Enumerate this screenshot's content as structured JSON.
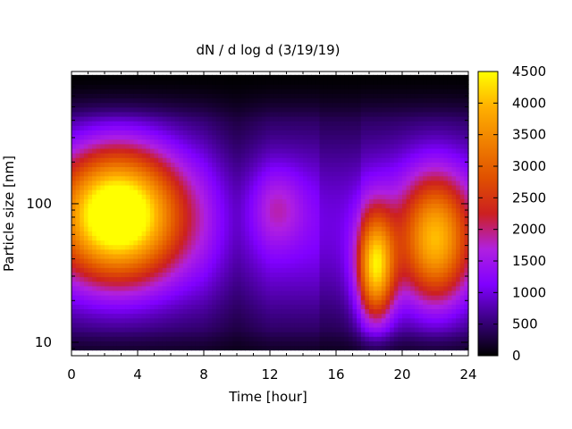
{
  "chart_data": {
    "type": "heatmap",
    "title": "dN / d log d (3/19/19)",
    "xlabel": "Time [hour]",
    "ylabel": "Particle size [nm]",
    "x_range": [
      0,
      24
    ],
    "x_ticks": [
      0,
      4,
      8,
      12,
      16,
      20,
      24
    ],
    "x_tick_labels": [
      "0",
      "4",
      "8",
      "12",
      "16",
      "20",
      "24"
    ],
    "y_scale": "log",
    "y_range": [
      8,
      900
    ],
    "y_ticks": [
      10,
      100
    ],
    "y_tick_labels": [
      "10",
      "100"
    ],
    "colorbar": {
      "range": [
        0,
        4500
      ],
      "ticks": [
        0,
        500,
        1000,
        1500,
        2000,
        2500,
        3000,
        3500,
        4000,
        4500
      ],
      "tick_labels": [
        "0",
        "500",
        "1000",
        "1500",
        "2000",
        "2500",
        "3000",
        "3500",
        "4000",
        "4500"
      ],
      "colormap": [
        "#000000",
        "#3a0080",
        "#8000ff",
        "#b020e0",
        "#cc2020",
        "#e05000",
        "#f08000",
        "#ffb000",
        "#ffff00"
      ]
    },
    "data_extent": {
      "d_min_nm": 8.8,
      "d_max_nm": 850
    },
    "modes": [
      {
        "t_hour": 2.8,
        "d_nm": 85,
        "peak": 4200,
        "t_width_h": 2.6,
        "log_d_width": 0.33
      },
      {
        "t_hour": 18.4,
        "d_nm": 35,
        "peak": 3300,
        "t_width_h": 0.8,
        "log_d_width": 0.28
      },
      {
        "t_hour": 22.0,
        "d_nm": 55,
        "peak": 2900,
        "t_width_h": 1.5,
        "log_d_width": 0.33
      },
      {
        "t_hour": 12.5,
        "d_nm": 95,
        "peak": 700,
        "t_width_h": 1.1,
        "log_d_width": 0.2
      }
    ],
    "grid": false,
    "legend": "colorbar-right"
  }
}
